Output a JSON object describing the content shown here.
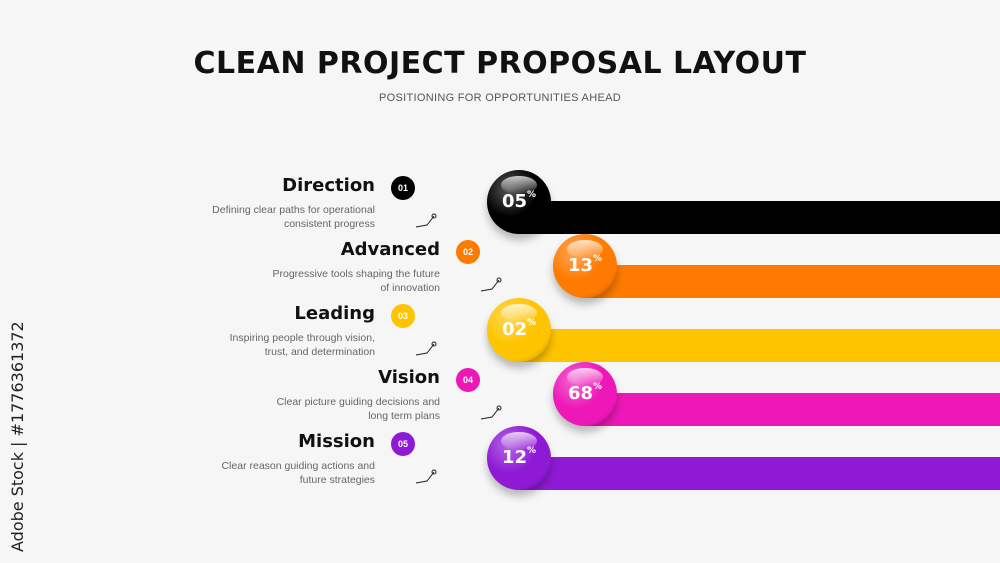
{
  "header": {
    "title": "CLEAN PROJECT PROPOSAL LAYOUT",
    "subtitle": "POSITIONING FOR OPPORTUNITIES AHEAD"
  },
  "watermark": "Adobe Stock | #1776361372",
  "items": [
    {
      "number": "01",
      "heading": "Direction",
      "desc_line1": "Defining clear paths for operational",
      "desc_line2": "consistent progress",
      "value": "05",
      "unit": "%",
      "color": "#000000"
    },
    {
      "number": "02",
      "heading": "Advanced",
      "desc_line1": "Progressive tools shaping the future",
      "desc_line2": "of innovation",
      "value": "13",
      "unit": "%",
      "color": "#ff7a00"
    },
    {
      "number": "03",
      "heading": "Leading",
      "desc_line1": "Inspiring people through vision,",
      "desc_line2": "trust, and determination",
      "value": "02",
      "unit": "%",
      "color": "#ffc400"
    },
    {
      "number": "04",
      "heading": "Vision",
      "desc_line1": "Clear picture guiding decisions and",
      "desc_line2": "long term plans",
      "value": "68",
      "unit": "%",
      "color": "#ee18b8"
    },
    {
      "number": "05",
      "heading": "Mission",
      "desc_line1": "Clear reason guiding actions and",
      "desc_line2": "future strategies",
      "value": "12",
      "unit": "%",
      "color": "#8f1ad6"
    }
  ]
}
